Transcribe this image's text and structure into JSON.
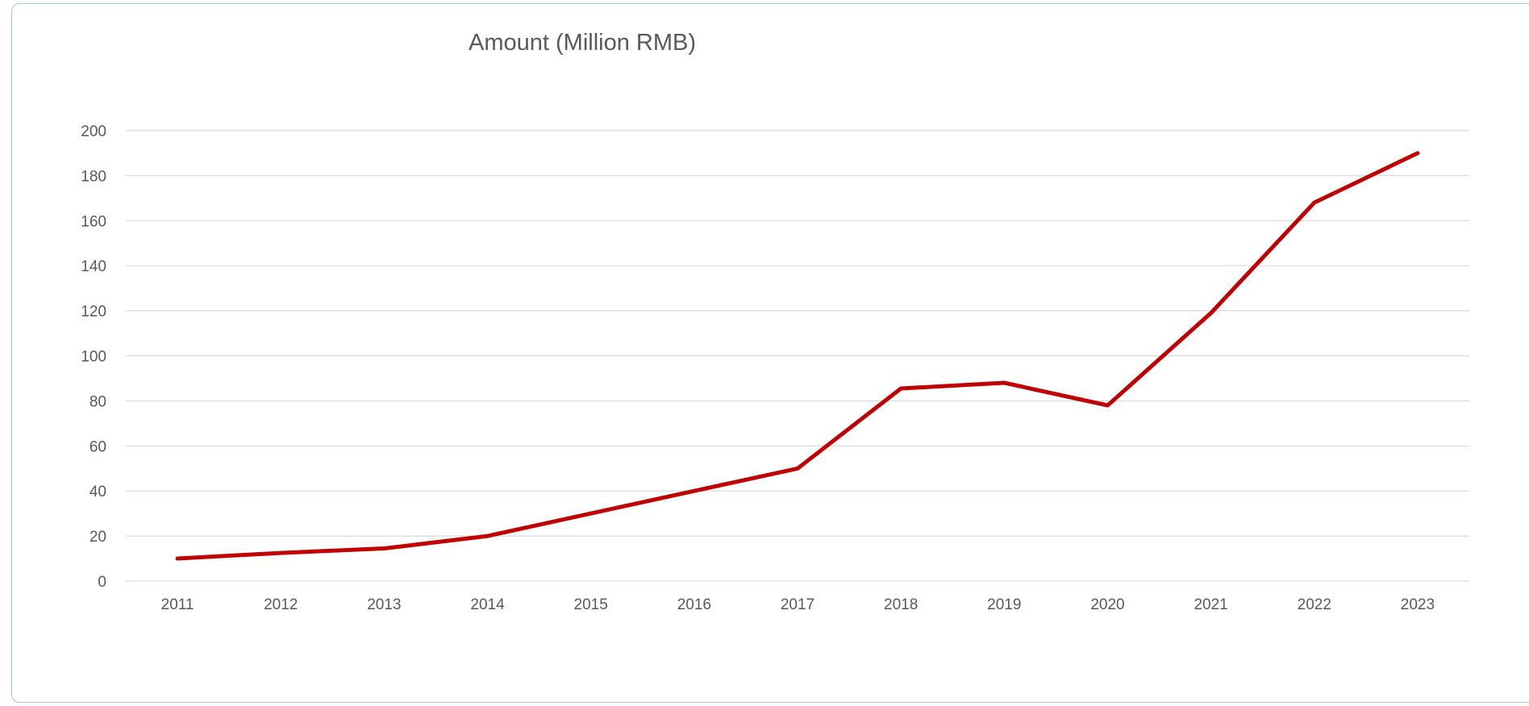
{
  "chart_data": {
    "type": "line",
    "title": "Amount  (Million RMB)",
    "xlabel": "",
    "ylabel": "",
    "x": [
      "2011",
      "2012",
      "2013",
      "2014",
      "2015",
      "2016",
      "2017",
      "2018",
      "2019",
      "2020",
      "2021",
      "2022",
      "2023"
    ],
    "series": [
      {
        "values": [
          10,
          12.5,
          14.5,
          20,
          30,
          40,
          50,
          85.5,
          88,
          78,
          119,
          168,
          190
        ],
        "color": "#c00000"
      }
    ],
    "ylim": [
      0,
      200
    ],
    "yticks": [
      "0",
      "20",
      "40",
      "60",
      "80",
      "100",
      "120",
      "140",
      "160",
      "180",
      "200"
    ],
    "grid": true,
    "legend": "none"
  }
}
